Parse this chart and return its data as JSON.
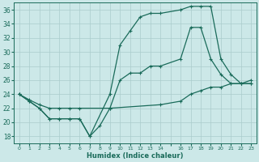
{
  "xlabel": "Humidex (Indice chaleur)",
  "bg_color": "#cce8e8",
  "grid_color": "#aacccc",
  "line_color": "#1a6b5a",
  "ylim": [
    17,
    37
  ],
  "xlim": [
    -0.5,
    23.5
  ],
  "yticks": [
    18,
    20,
    22,
    24,
    26,
    28,
    30,
    32,
    34,
    36
  ],
  "xtick_labels": [
    "0",
    "1",
    "2",
    "3",
    "4",
    "5",
    "6",
    "7",
    "8",
    "9",
    "10",
    "11",
    "12",
    "13",
    "14",
    "",
    "16",
    "17",
    "18",
    "19",
    "20",
    "21",
    "22",
    "23"
  ],
  "line1_x": [
    0,
    1,
    2,
    3,
    4,
    5,
    6,
    7,
    9,
    10,
    11,
    12,
    13,
    14,
    16,
    17,
    18,
    19,
    20,
    21,
    22,
    23
  ],
  "line1_y": [
    24,
    23,
    22,
    20.5,
    20.5,
    20.5,
    20.5,
    18,
    24,
    31,
    33,
    35,
    35.5,
    35.5,
    36,
    36.5,
    36.5,
    36.5,
    29,
    26.8,
    25.5,
    25.5
  ],
  "line2_x": [
    0,
    1,
    2,
    3,
    4,
    5,
    6,
    7,
    8,
    9,
    10,
    11,
    12,
    13,
    14,
    16,
    17,
    18,
    19,
    20,
    21,
    22,
    23
  ],
  "line2_y": [
    24,
    23,
    22,
    20.5,
    20.5,
    20.5,
    20.5,
    18,
    19.5,
    22,
    26,
    27,
    27,
    28,
    28,
    29,
    33.5,
    33.5,
    29,
    26.8,
    25.5,
    25.5,
    25.5
  ],
  "line3_x": [
    0,
    1,
    2,
    3,
    4,
    5,
    6,
    9,
    14,
    16,
    17,
    18,
    19,
    20,
    21,
    22,
    23
  ],
  "line3_y": [
    24,
    23.2,
    22.5,
    22,
    22,
    22,
    22,
    22,
    22.5,
    23,
    24,
    24.5,
    25,
    25,
    25.5,
    25.5,
    26
  ]
}
